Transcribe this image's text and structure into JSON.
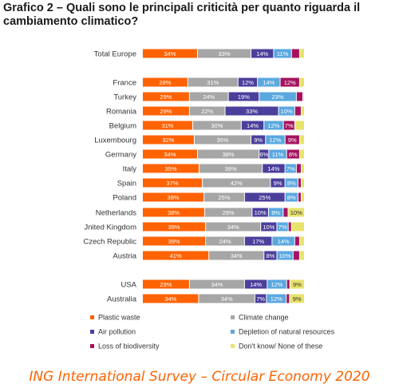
{
  "title": "Grafico 2 – Quali sono le principali criticità per quanto riguarda il cambiamento climatico?",
  "footer": "ING International Survey – Circular Economy 2020",
  "colors": {
    "plastic_waste": "#ff6200",
    "climate_change": "#a6a6a6",
    "air_pollution": "#4b3f9c",
    "depletion": "#5aa8df",
    "biodiversity": "#a5135f",
    "dont_know": "#e7e36b"
  },
  "chart_data": {
    "type": "bar",
    "stacked": true,
    "orientation": "horizontal",
    "categories": [
      "Total Europe",
      "France",
      "Turkey",
      "Romania",
      "Belgium",
      "Luxembourg",
      "Germany",
      "Italy",
      "Spain",
      "Poland",
      "Netherlands",
      "Jnited Kingdom",
      "Czech Republic",
      "Austria",
      "USA",
      "Australia"
    ],
    "series": [
      {
        "name": "Plastic waste",
        "color_key": "plastic_waste",
        "values": [
          34,
          28,
          29,
          29,
          31,
          32,
          34,
          35,
          37,
          38,
          38,
          39,
          39,
          41,
          29,
          34
        ],
        "labels": [
          "34%",
          "28%",
          "29%",
          "29%",
          "31%",
          "32%",
          "34%",
          "35%",
          "37%",
          "38%",
          "38%",
          "39%",
          "39%",
          "41%",
          "29%",
          "34%"
        ]
      },
      {
        "name": "Climate change",
        "color_key": "climate_change",
        "values": [
          33,
          31,
          24,
          22,
          30,
          35,
          38,
          39,
          42,
          25,
          29,
          34,
          24,
          34,
          34,
          34
        ],
        "labels": [
          "33%",
          "31%",
          "24%",
          "22%",
          "30%",
          "35%",
          "38%",
          "39%",
          "42%",
          "25%",
          "29%",
          "34%",
          "24%",
          "34%",
          "34%",
          "34%"
        ]
      },
      {
        "name": "Air pollution",
        "color_key": "air_pollution",
        "values": [
          14,
          12,
          19,
          33,
          14,
          9,
          6,
          14,
          9,
          25,
          10,
          10,
          17,
          8,
          14,
          7
        ],
        "labels": [
          "14%",
          "12%",
          "19%",
          "33%",
          "14%",
          "9%",
          "6%",
          "14%",
          "9%",
          "25%",
          "10%",
          "10%",
          "17%",
          "8%",
          "14%",
          "7%"
        ]
      },
      {
        "name": "Depletion of natural resources",
        "color_key": "depletion",
        "values": [
          11,
          14,
          23,
          10,
          12,
          12,
          11,
          7,
          8,
          8,
          9,
          7,
          14,
          10,
          12,
          12
        ],
        "labels": [
          "11%",
          "14%",
          "23%",
          "10%",
          "12%",
          "12%",
          "11%",
          "7%",
          "8%",
          "8%",
          "9%",
          "7%",
          "14%",
          "10%",
          "12%",
          "12%"
        ]
      },
      {
        "name": "Loss of biodiversity",
        "color_key": "biodiversity",
        "values": [
          5,
          12,
          4,
          4,
          7,
          9,
          8,
          3,
          2,
          2,
          3,
          2,
          3,
          4,
          2,
          2
        ],
        "labels": [
          "",
          "12%",
          "",
          "",
          "7%",
          "9%",
          "8%",
          "",
          "",
          "",
          "",
          "",
          "",
          "",
          "",
          ""
        ]
      },
      {
        "name": "Don't know/ None of these",
        "color_key": "dont_know",
        "values": [
          3,
          3,
          1,
          2,
          6,
          3,
          3,
          2,
          2,
          2,
          10,
          8,
          3,
          3,
          9,
          9
        ],
        "labels": [
          "",
          "",
          "",
          "",
          "",
          "",
          "",
          "",
          "",
          "",
          "10%",
          "",
          "",
          "",
          "9%",
          "9%"
        ]
      }
    ],
    "xlim": [
      0,
      100
    ],
    "grid": false,
    "legend_position": "bottom",
    "legend": [
      "Plastic waste",
      "Climate change",
      "Air pollution",
      "Depletion of natural resources",
      "Loss of biodiversity",
      "Don't know/ None of these"
    ]
  }
}
